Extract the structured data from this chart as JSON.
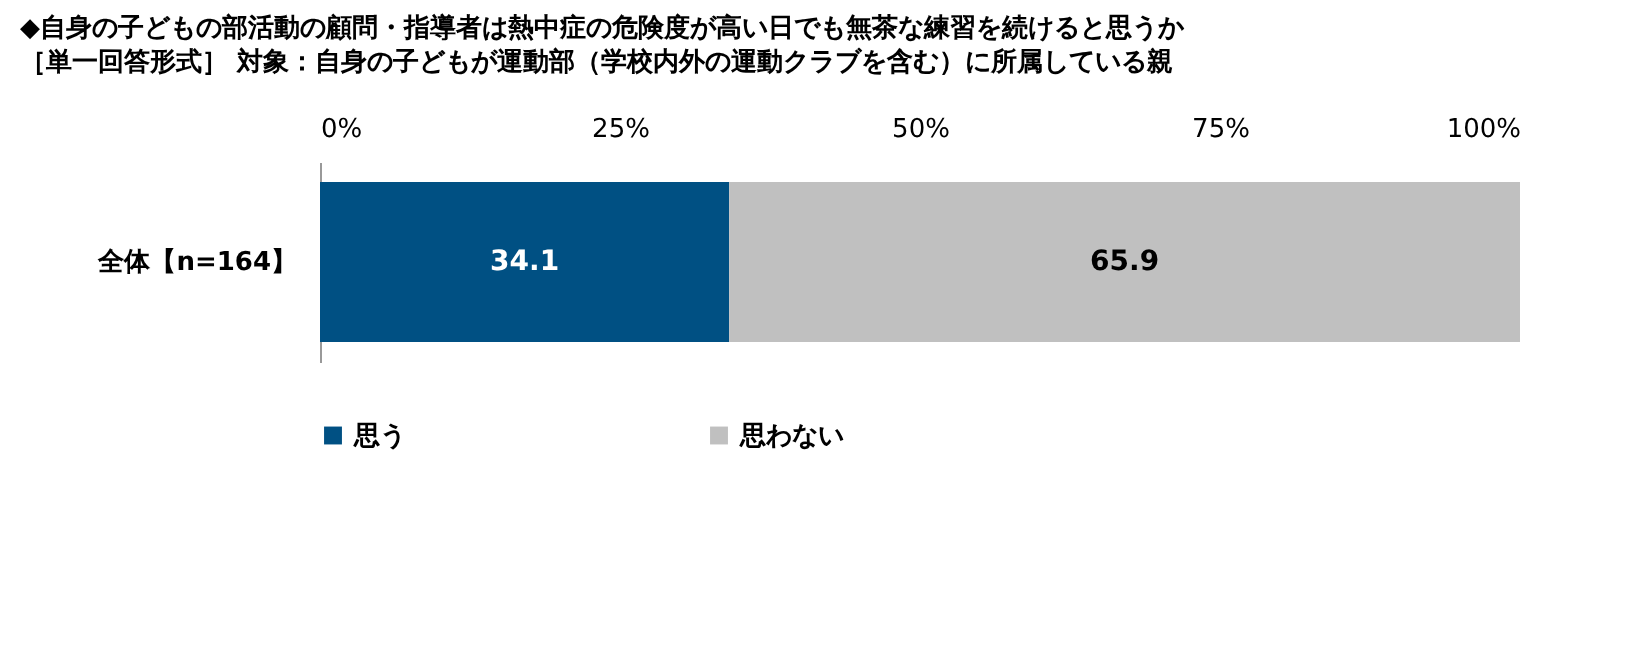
{
  "chart_data": {
    "type": "bar",
    "orientation": "horizontal",
    "stacked": true,
    "data_labels": true,
    "title": "◆自身の子どもの部活動の顧問・指導者は熱中症の危険度が高い日でも無茶な練習を続けると思うか",
    "subtitle": "［単一回答形式］ 対象：自身の子どもが運動部（学校内外の運動クラブを含む）に所属している親",
    "categories": [
      "全体【n=164】"
    ],
    "series": [
      {
        "name": "思う",
        "color": "#005083",
        "values": [
          34.1
        ]
      },
      {
        "name": "思わない",
        "color": "#c0c0c0",
        "values": [
          65.9
        ]
      }
    ],
    "xlim": [
      0,
      100
    ],
    "xticks": [
      {
        "value": 0,
        "label": "0%"
      },
      {
        "value": 25,
        "label": "25%"
      },
      {
        "value": 50,
        "label": "50%"
      },
      {
        "value": 75,
        "label": "75%"
      },
      {
        "value": 100,
        "label": "100%"
      }
    ],
    "grid": false,
    "legend": "bottom"
  }
}
